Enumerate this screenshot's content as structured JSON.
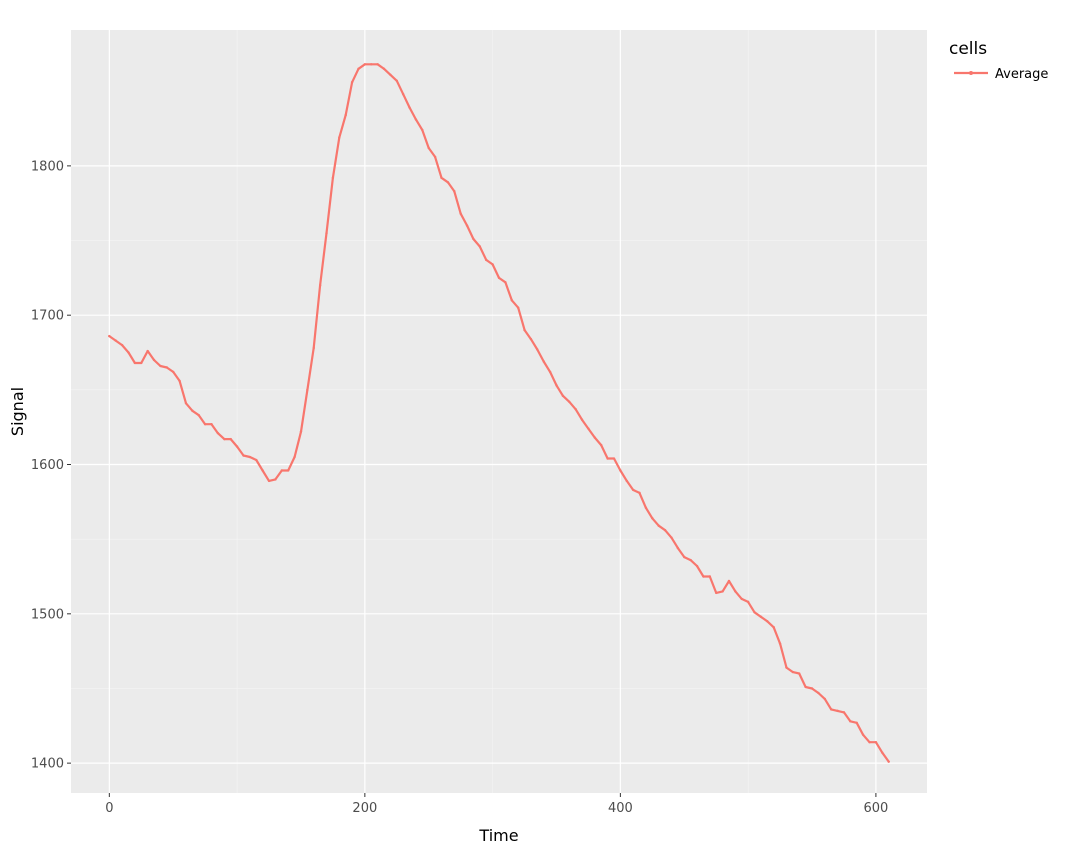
{
  "chart_data": {
    "type": "line",
    "xlabel": "Time",
    "ylabel": "Signal",
    "xlim": [
      -30,
      640
    ],
    "ylim": [
      1380,
      1891
    ],
    "xticks": [
      0,
      200,
      400,
      600
    ],
    "yticks": [
      1400,
      1500,
      1600,
      1700,
      1800
    ],
    "xtick_labels": [
      "0",
      "200",
      "400",
      "600"
    ],
    "ytick_labels": [
      "1400",
      "1500",
      "1600",
      "1700",
      "1800"
    ],
    "grid": true,
    "background_color": "#ebebeb",
    "grid_color": "#ffffff",
    "legend": {
      "title": "cells",
      "position": "right"
    },
    "series": [
      {
        "name": "Average",
        "color": "#f8766d",
        "x": [
          0,
          5,
          10,
          15,
          20,
          25,
          30,
          35,
          40,
          45,
          50,
          55,
          60,
          65,
          70,
          75,
          80,
          85,
          90,
          95,
          100,
          105,
          110,
          115,
          120,
          125,
          130,
          135,
          140,
          145,
          150,
          155,
          160,
          165,
          170,
          175,
          180,
          185,
          190,
          195,
          200,
          205,
          210,
          215,
          220,
          225,
          230,
          235,
          240,
          245,
          250,
          255,
          260,
          265,
          270,
          275,
          280,
          285,
          290,
          295,
          300,
          305,
          310,
          315,
          320,
          325,
          330,
          335,
          340,
          345,
          350,
          355,
          360,
          365,
          370,
          375,
          380,
          385,
          390,
          395,
          400,
          405,
          410,
          415,
          420,
          425,
          430,
          435,
          440,
          445,
          450,
          455,
          460,
          465,
          470,
          475,
          480,
          485,
          490,
          495,
          500,
          505,
          510,
          515,
          520,
          525,
          530,
          535,
          540,
          545,
          550,
          555,
          560,
          565,
          570,
          575,
          580,
          585,
          590,
          595,
          600,
          605,
          610
        ],
        "values": [
          1686,
          1683,
          1680,
          1675,
          1668,
          1668,
          1676,
          1670,
          1666,
          1665,
          1662,
          1656,
          1641,
          1636,
          1633,
          1627,
          1627,
          1621,
          1617,
          1617,
          1612,
          1606,
          1605,
          1603,
          1596,
          1589,
          1590,
          1596,
          1596,
          1605,
          1622,
          1650,
          1678,
          1720,
          1755,
          1792,
          1819,
          1834,
          1856,
          1865,
          1868,
          1868,
          1868,
          1865,
          1861,
          1857,
          1848,
          1839,
          1831,
          1824,
          1812,
          1806,
          1792,
          1789,
          1783,
          1768,
          1760,
          1751,
          1746,
          1737,
          1734,
          1725,
          1722,
          1710,
          1705,
          1690,
          1684,
          1677,
          1669,
          1662,
          1653,
          1646,
          1642,
          1637,
          1630,
          1624,
          1618,
          1613,
          1604,
          1604,
          1596,
          1589,
          1583,
          1581,
          1571,
          1564,
          1559,
          1556,
          1551,
          1544,
          1538,
          1536,
          1532,
          1525,
          1525,
          1514,
          1515,
          1522,
          1515,
          1510,
          1508,
          1501,
          1498,
          1495,
          1491,
          1480,
          1464,
          1461,
          1460,
          1451,
          1450,
          1447,
          1443,
          1436,
          1435,
          1434,
          1428,
          1427,
          1419,
          1414,
          1414,
          1407,
          1401
        ]
      }
    ]
  }
}
